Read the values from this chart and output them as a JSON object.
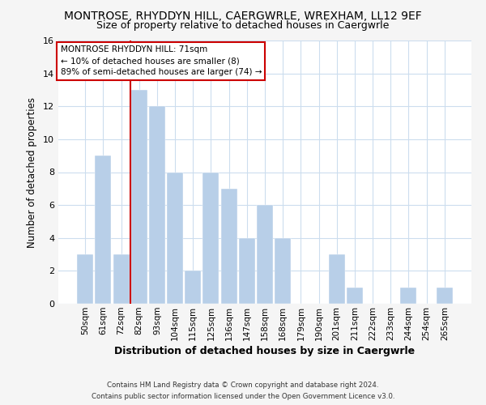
{
  "title": "MONTROSE, RHYDDYN HILL, CAERGWRLE, WREXHAM, LL12 9EF",
  "subtitle": "Size of property relative to detached houses in Caergwrle",
  "xlabel": "Distribution of detached houses by size in Caergwrle",
  "ylabel": "Number of detached properties",
  "bar_labels": [
    "50sqm",
    "61sqm",
    "72sqm",
    "82sqm",
    "93sqm",
    "104sqm",
    "115sqm",
    "125sqm",
    "136sqm",
    "147sqm",
    "158sqm",
    "168sqm",
    "179sqm",
    "190sqm",
    "201sqm",
    "211sqm",
    "222sqm",
    "233sqm",
    "244sqm",
    "254sqm",
    "265sqm"
  ],
  "bar_values": [
    3,
    9,
    3,
    13,
    12,
    8,
    2,
    8,
    7,
    4,
    6,
    4,
    0,
    0,
    3,
    1,
    0,
    0,
    1,
    0,
    1
  ],
  "bar_color": "#b8cfe8",
  "highlight_index": 2,
  "highlight_line_color": "#cc0000",
  "ylim": [
    0,
    16
  ],
  "yticks": [
    0,
    2,
    4,
    6,
    8,
    10,
    12,
    14,
    16
  ],
  "annotation_title": "MONTROSE RHYDDYN HILL: 71sqm",
  "annotation_line1": "← 10% of detached houses are smaller (8)",
  "annotation_line2": "89% of semi-detached houses are larger (74) →",
  "annotation_box_color": "#ffffff",
  "annotation_box_edge_color": "#cc0000",
  "footer_line1": "Contains HM Land Registry data © Crown copyright and database right 2024.",
  "footer_line2": "Contains public sector information licensed under the Open Government Licence v3.0.",
  "bg_color": "#f5f5f5",
  "plot_bg_color": "#ffffff",
  "grid_color": "#ccddee"
}
